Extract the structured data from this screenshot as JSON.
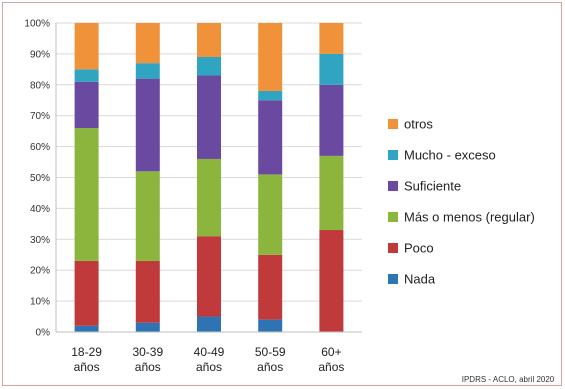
{
  "chart_data": {
    "type": "bar",
    "stacked": true,
    "y_format": "percent",
    "ylim": [
      0,
      100
    ],
    "yticks": [
      0,
      10,
      20,
      30,
      40,
      50,
      60,
      70,
      80,
      90,
      100
    ],
    "ytick_labels": [
      "0%",
      "10%",
      "20%",
      "30%",
      "40%",
      "50%",
      "60%",
      "70%",
      "80%",
      "90%",
      "100%"
    ],
    "grid": true,
    "legend_position": "right",
    "categories": [
      [
        "18-29",
        "años"
      ],
      [
        "30-39",
        "años"
      ],
      [
        "40-49",
        "años"
      ],
      [
        "50-59",
        "años"
      ],
      [
        "60+",
        "años"
      ]
    ],
    "series": [
      {
        "name": "Nada",
        "color": "#2e74b5",
        "values": [
          2,
          3,
          5,
          4,
          0
        ]
      },
      {
        "name": "Poco",
        "color": "#c0393b",
        "values": [
          21,
          20,
          26,
          21,
          33
        ]
      },
      {
        "name": "Más o menos (regular)",
        "color": "#8cb53e",
        "values": [
          43,
          29,
          25,
          26,
          24
        ]
      },
      {
        "name": "Suficiente",
        "color": "#6a4aa0",
        "values": [
          15,
          30,
          27,
          24,
          23
        ]
      },
      {
        "name": "Mucho - exceso",
        "color": "#2fa5c2",
        "values": [
          4,
          5,
          6,
          3,
          10
        ]
      },
      {
        "name": "otros",
        "color": "#f0923a",
        "values": [
          15,
          13,
          11,
          22,
          10
        ]
      }
    ],
    "source": "IPDRS - ACLO, abril 2020"
  }
}
